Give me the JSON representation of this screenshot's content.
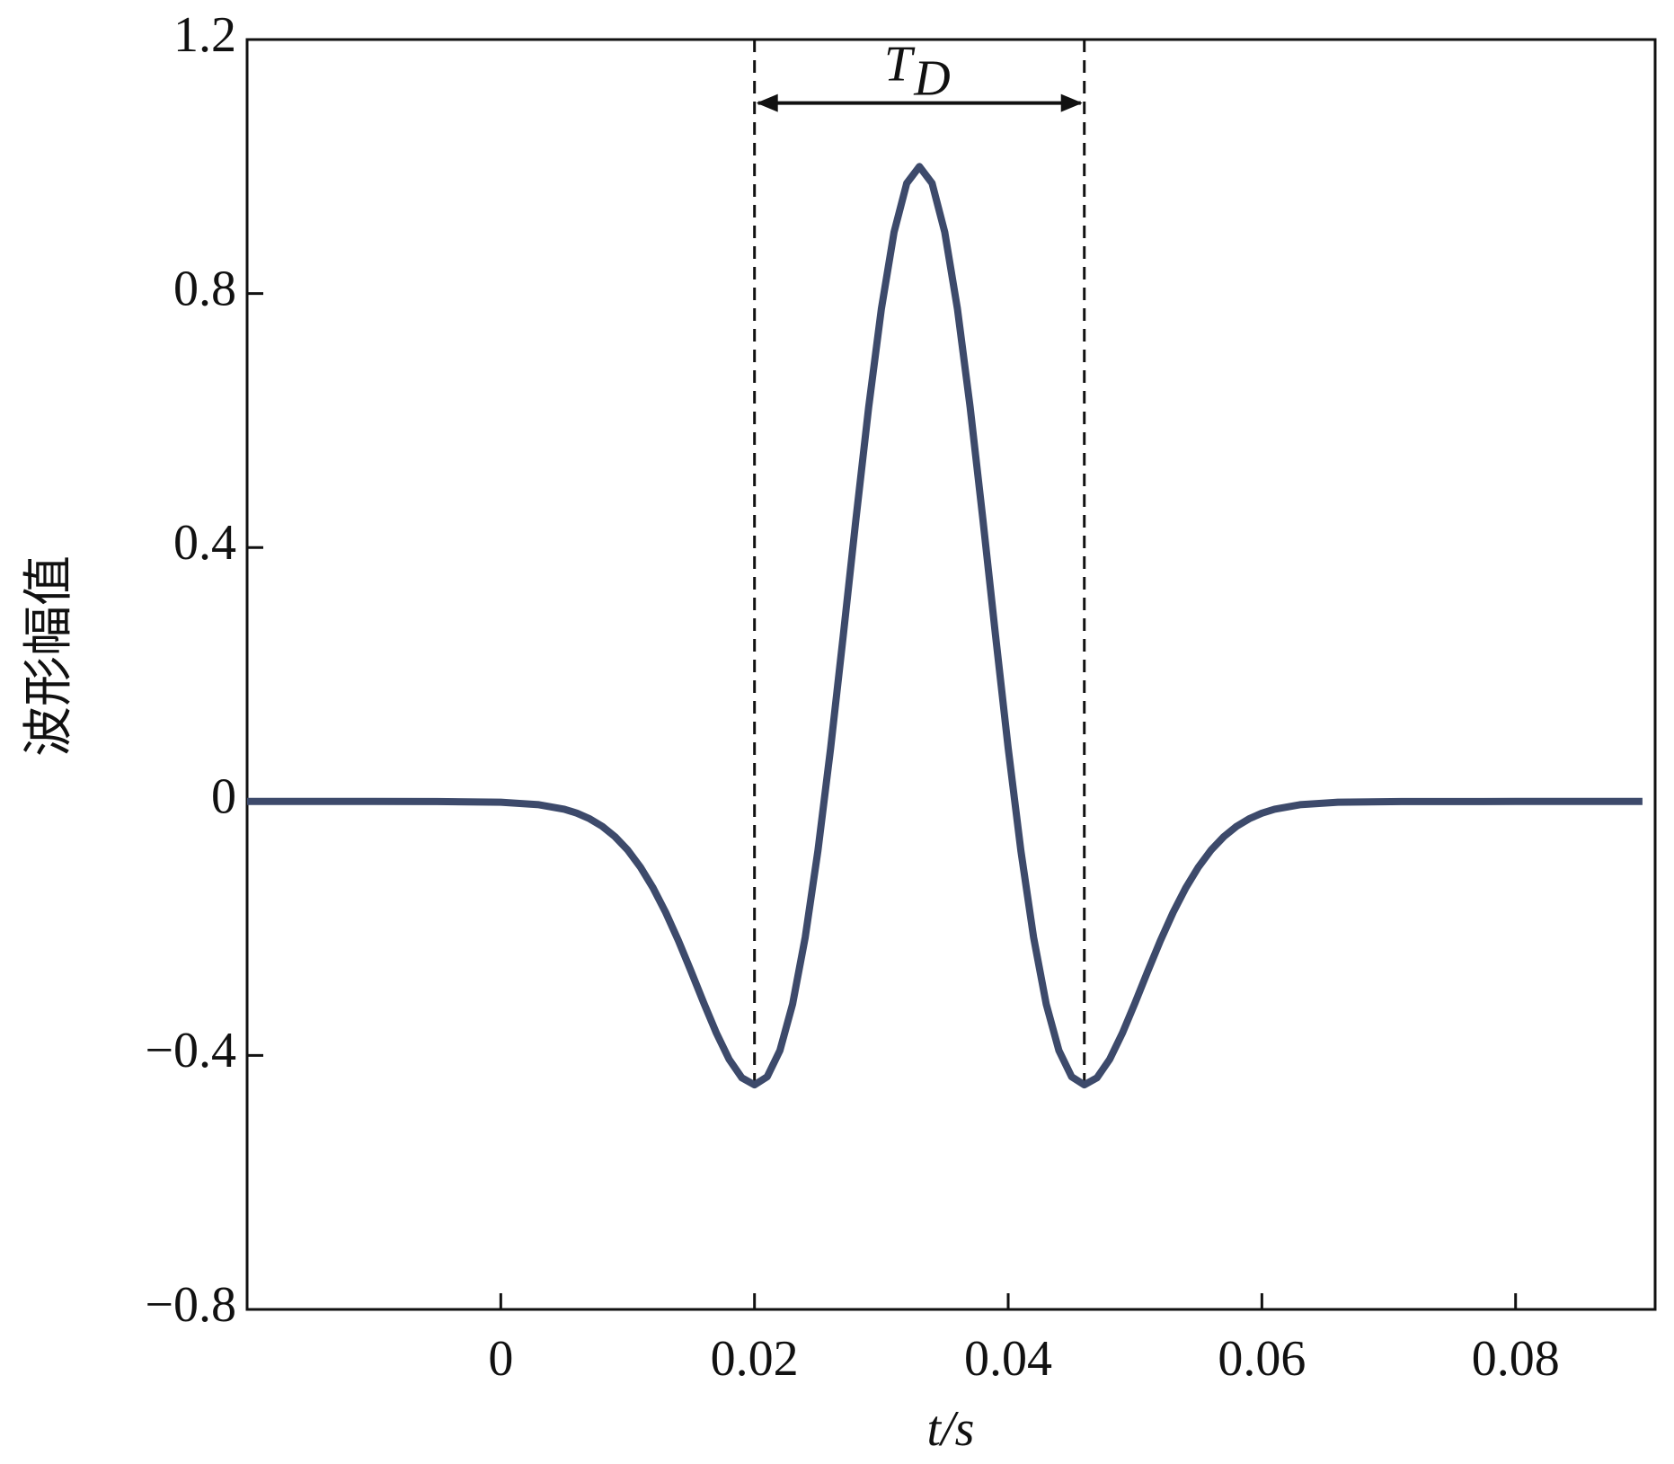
{
  "chart_data": {
    "type": "line",
    "y_label": "波形幅值",
    "x_label": "t/s",
    "x": [
      -0.02,
      -0.01,
      -0.005,
      0,
      0.003,
      0.005,
      0.006,
      0.007,
      0.008,
      0.009,
      0.01,
      0.011,
      0.012,
      0.013,
      0.014,
      0.015,
      0.016,
      0.017,
      0.018,
      0.019,
      0.02,
      0.021,
      0.022,
      0.023,
      0.024,
      0.025,
      0.026,
      0.027,
      0.028,
      0.029,
      0.03,
      0.031,
      0.032,
      0.033,
      0.034,
      0.035,
      0.036,
      0.037,
      0.038,
      0.039,
      0.04,
      0.041,
      0.042,
      0.043,
      0.044,
      0.045,
      0.046,
      0.047,
      0.048,
      0.049,
      0.05,
      0.051,
      0.052,
      0.053,
      0.054,
      0.055,
      0.056,
      0.057,
      0.058,
      0.059,
      0.06,
      0.061,
      0.063,
      0.066,
      0.071,
      0.08,
      0.09
    ],
    "series": [
      {
        "color": "#3d4a6b",
        "values": [
          0,
          0,
          -0.0001,
          -0.0012,
          -0.0051,
          -0.0122,
          -0.0184,
          -0.0272,
          -0.0392,
          -0.0554,
          -0.0764,
          -0.1032,
          -0.136,
          -0.1748,
          -0.2191,
          -0.2675,
          -0.3173,
          -0.365,
          -0.4062,
          -0.4352,
          -0.4463,
          -0.4336,
          -0.3924,
          -0.3194,
          -0.2138,
          -0.0776,
          0.0838,
          0.2618,
          0.4452,
          0.6209,
          0.7756,
          0.8965,
          0.9736,
          1,
          0.9736,
          0.8965,
          0.7756,
          0.6209,
          0.4452,
          0.2618,
          0.0838,
          -0.0776,
          -0.2138,
          -0.3194,
          -0.3924,
          -0.4336,
          -0.4463,
          -0.4352,
          -0.4062,
          -0.365,
          -0.3173,
          -0.2675,
          -0.2191,
          -0.1748,
          -0.136,
          -0.1032,
          -0.0764,
          -0.0554,
          -0.0392,
          -0.0272,
          -0.0184,
          -0.0122,
          -0.0051,
          -0.0012,
          -0.0001,
          0,
          0
        ]
      }
    ],
    "xlim": [
      -0.02,
      0.091
    ],
    "ylim": [
      -0.8,
      1.2
    ],
    "xticks": [
      0,
      0.02,
      0.04,
      0.06,
      0.08
    ],
    "yticks": [
      {
        "value": -0.8,
        "label": "−0.8"
      },
      {
        "value": -0.4,
        "label": "−0.4"
      },
      0,
      0.4,
      0.8,
      1.2
    ],
    "annotation": {
      "text": "T",
      "subscript": "D",
      "x": [
        0.02,
        0.046
      ],
      "y": 1.1
    }
  }
}
